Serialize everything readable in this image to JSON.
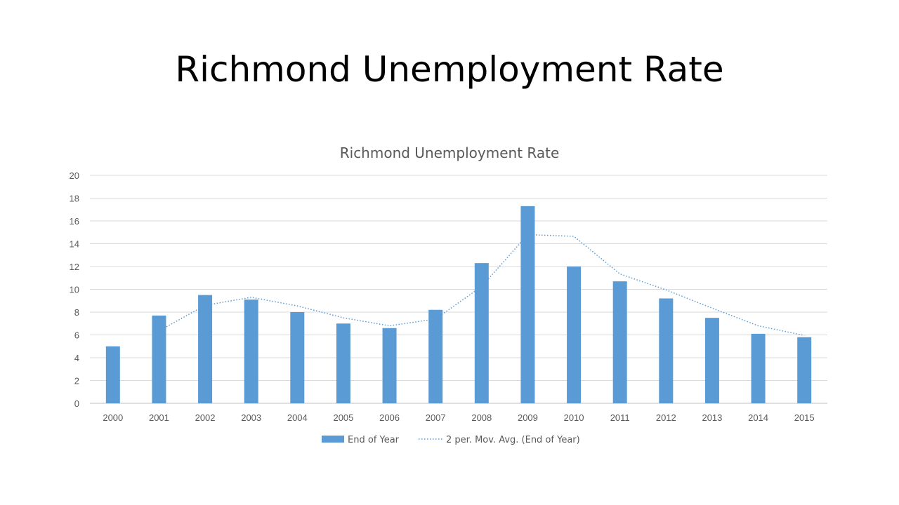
{
  "slide": {
    "title": "Richmond Unemployment Rate"
  },
  "chart_data": {
    "type": "bar",
    "title": "Richmond Unemployment Rate",
    "xlabel": "",
    "ylabel": "",
    "categories": [
      "2000",
      "2001",
      "2002",
      "2003",
      "2004",
      "2005",
      "2006",
      "2007",
      "2008",
      "2009",
      "2010",
      "2011",
      "2012",
      "2013",
      "2014",
      "2015"
    ],
    "series": [
      {
        "name": "End of Year",
        "type": "bar",
        "color": "#5b9bd5",
        "values": [
          5.0,
          7.7,
          9.5,
          9.1,
          8.0,
          7.0,
          6.6,
          8.2,
          12.3,
          17.3,
          12.0,
          10.7,
          9.2,
          7.5,
          6.1,
          5.8
        ]
      },
      {
        "name": "2 per. Mov. Avg. (End of Year)",
        "type": "line",
        "style": "dotted",
        "color": "#5b9bd5",
        "values": [
          null,
          6.35,
          8.6,
          9.3,
          8.55,
          7.5,
          6.8,
          7.4,
          10.25,
          14.8,
          14.65,
          11.35,
          9.95,
          8.35,
          6.8,
          5.95
        ]
      }
    ],
    "ylim": [
      0,
      20
    ],
    "yticks": [
      0,
      2,
      4,
      6,
      8,
      10,
      12,
      14,
      16,
      18,
      20
    ],
    "grid": true,
    "legend": "bottom"
  }
}
